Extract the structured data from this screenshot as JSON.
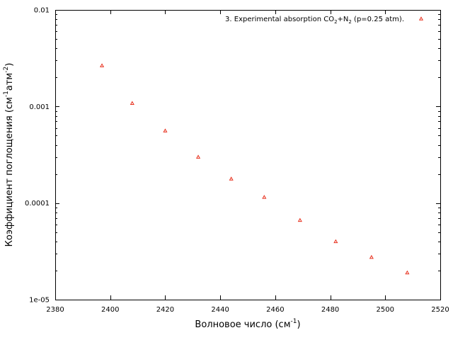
{
  "chart_data": {
    "type": "scatter",
    "xlabel_main": "Волновое число (см",
    "xlabel_sup": "-1",
    "xlabel_end": ")",
    "ylabel_main": "Коэффициент поглощения (см",
    "ylabel_sup1": "-1",
    "ylabel_mid": "атм",
    "ylabel_sup2": "-2",
    "ylabel_end": ")",
    "xlim": [
      2380,
      2520
    ],
    "ylim": [
      1e-05,
      0.01
    ],
    "y_scale": "log",
    "grid": false,
    "legend_position": "top-right",
    "x_ticks": [
      "2380",
      "2400",
      "2420",
      "2440",
      "2460",
      "2480",
      "2500",
      "2520"
    ],
    "y_ticks": [
      "1e-05",
      "0.0001",
      "0.001",
      "0.01"
    ],
    "legend": {
      "prefix": "3. Experimental absorption CO",
      "sub1": "2",
      "mid": "+N",
      "sub2": "2",
      "suffix": " (p=0.25 atm)."
    },
    "series": [
      {
        "name": "3. Experimental absorption CO2+N2 (p=0.25 atm).",
        "color": "#e8311e",
        "marker": "triangle",
        "x": [
          2397,
          2408,
          2420,
          2432,
          2444,
          2456,
          2469,
          2482,
          2495,
          2508
        ],
        "y": [
          0.00265,
          0.00108,
          0.00056,
          0.0003,
          0.000178,
          0.000115,
          6.65e-05,
          4e-05,
          2.75e-05,
          1.9e-05
        ]
      }
    ]
  }
}
